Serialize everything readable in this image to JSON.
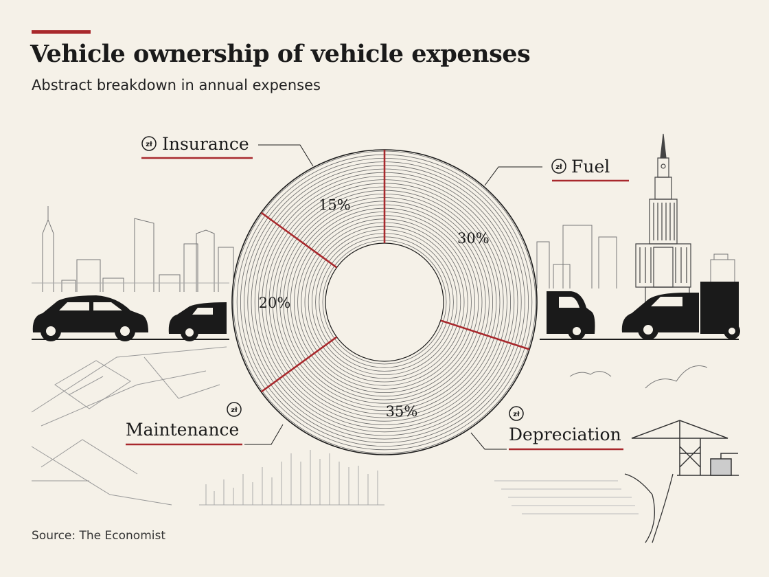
{
  "header": {
    "title": "Vehicle ownership of vehicle expenses",
    "subtitle": "Abstract breakdown in annual expenses"
  },
  "footer": {
    "source": "Source: The Economist"
  },
  "icons": {
    "currency_symbol": "zł"
  },
  "colors": {
    "accent": "#a8282c",
    "background": "#f5f1e8",
    "ink": "#1a1a1a"
  },
  "chart_data": {
    "type": "pie",
    "variant": "donut",
    "title": "Vehicle ownership of vehicle expenses",
    "subtitle": "Abstract breakdown in annual expenses",
    "categories": [
      "Fuel",
      "Depreciation",
      "Maintenance",
      "Insurance"
    ],
    "values": [
      30,
      35,
      20,
      15
    ],
    "value_labels": [
      "30%",
      "35%",
      "20%",
      "15%"
    ],
    "unit": "%",
    "legend": "none"
  }
}
